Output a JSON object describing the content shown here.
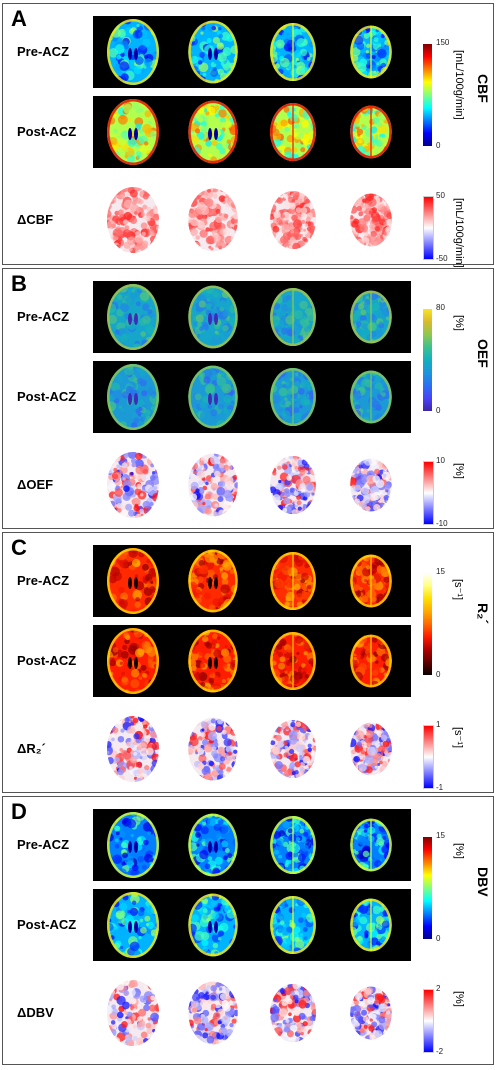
{
  "panels": [
    {
      "letter": "A",
      "title": "CBF",
      "unit": "[mL/100g/min]",
      "delta_unit": "[mL/100g/min]",
      "rows": [
        "Pre-ACZ",
        "Post-ACZ",
        "ΔCBF"
      ],
      "scale_max": "150",
      "scale_min": "0",
      "delta_max": "50",
      "delta_min": "-50",
      "colormap": "jet",
      "pre_level": 0.3,
      "post_level": 0.55
    },
    {
      "letter": "B",
      "title": "OEF",
      "unit": "[%]",
      "delta_unit": "[%]",
      "rows": [
        "Pre-ACZ",
        "Post-ACZ",
        "ΔOEF"
      ],
      "scale_max": "80",
      "scale_min": "0",
      "delta_max": "10",
      "delta_min": "-10",
      "colormap": "parula",
      "pre_level": 0.45,
      "post_level": 0.4
    },
    {
      "letter": "C",
      "title": "R₂´",
      "unit": "[s⁻¹]",
      "delta_unit": "[s⁻¹]",
      "rows": [
        "Pre-ACZ",
        "Post-ACZ",
        "ΔR₂´"
      ],
      "scale_max": "15",
      "scale_min": "0",
      "delta_max": "1",
      "delta_min": "-1",
      "colormap": "hot",
      "pre_level": 0.4,
      "post_level": 0.38
    },
    {
      "letter": "D",
      "title": "DBV",
      "unit": "[%]",
      "delta_unit": "[%]",
      "rows": [
        "Pre-ACZ",
        "Post-ACZ",
        "ΔDBV"
      ],
      "scale_max": "15",
      "scale_min": "0",
      "delta_max": "2",
      "delta_min": "-2",
      "colormap": "jet",
      "pre_level": 0.25,
      "post_level": 0.3
    }
  ]
}
